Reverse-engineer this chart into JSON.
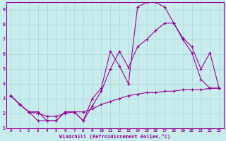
{
  "title": "",
  "xlabel": "Windchill (Refroidissement éolien,°C)",
  "ylabel": "",
  "xlim": [
    -0.5,
    23.5
  ],
  "ylim": [
    1,
    9.5
  ],
  "xtick_labels": [
    "0",
    "1",
    "2",
    "3",
    "4",
    "5",
    "6",
    "7",
    "8",
    "9",
    "10",
    "11",
    "12",
    "13",
    "14",
    "15",
    "16",
    "17",
    "18",
    "19",
    "20",
    "21",
    "22",
    "23"
  ],
  "ytick_labels": [
    "1",
    "2",
    "3",
    "4",
    "5",
    "6",
    "7",
    "8",
    "9"
  ],
  "background_color": "#c8ecec",
  "line_color": "#990099",
  "grid_color": "#b0d8d8",
  "curves": [
    {
      "x": [
        0,
        1,
        2,
        3,
        4,
        5,
        6,
        7,
        8,
        9,
        10,
        11,
        12,
        13,
        14,
        15,
        16,
        17,
        18,
        19,
        20,
        21,
        22,
        23
      ],
      "y": [
        3.2,
        2.6,
        2.1,
        1.5,
        1.5,
        1.5,
        2.1,
        2.1,
        1.5,
        3.0,
        3.7,
        6.2,
        5.2,
        4.0,
        9.2,
        9.5,
        9.5,
        9.2,
        8.1,
        7.0,
        6.1,
        4.3,
        3.7,
        3.7
      ]
    },
    {
      "x": [
        0,
        1,
        2,
        3,
        4,
        5,
        6,
        7,
        8,
        9,
        10,
        11,
        12,
        13,
        14,
        15,
        16,
        17,
        18,
        19,
        20,
        21,
        22,
        23
      ],
      "y": [
        3.2,
        2.6,
        2.1,
        2.1,
        1.5,
        1.5,
        2.1,
        2.1,
        1.5,
        2.5,
        3.5,
        5.0,
        6.2,
        5.1,
        6.5,
        7.0,
        7.6,
        8.1,
        8.1,
        7.1,
        6.5,
        5.0,
        6.1,
        3.7
      ]
    },
    {
      "x": [
        0,
        1,
        2,
        3,
        4,
        5,
        6,
        7,
        8,
        9,
        10,
        11,
        12,
        13,
        14,
        15,
        16,
        17,
        18,
        19,
        20,
        21,
        22,
        23
      ],
      "y": [
        3.2,
        2.6,
        2.1,
        2.0,
        1.8,
        1.8,
        2.0,
        2.1,
        2.1,
        2.3,
        2.6,
        2.8,
        3.0,
        3.2,
        3.3,
        3.4,
        3.4,
        3.5,
        3.5,
        3.6,
        3.6,
        3.6,
        3.7,
        3.7
      ]
    }
  ]
}
